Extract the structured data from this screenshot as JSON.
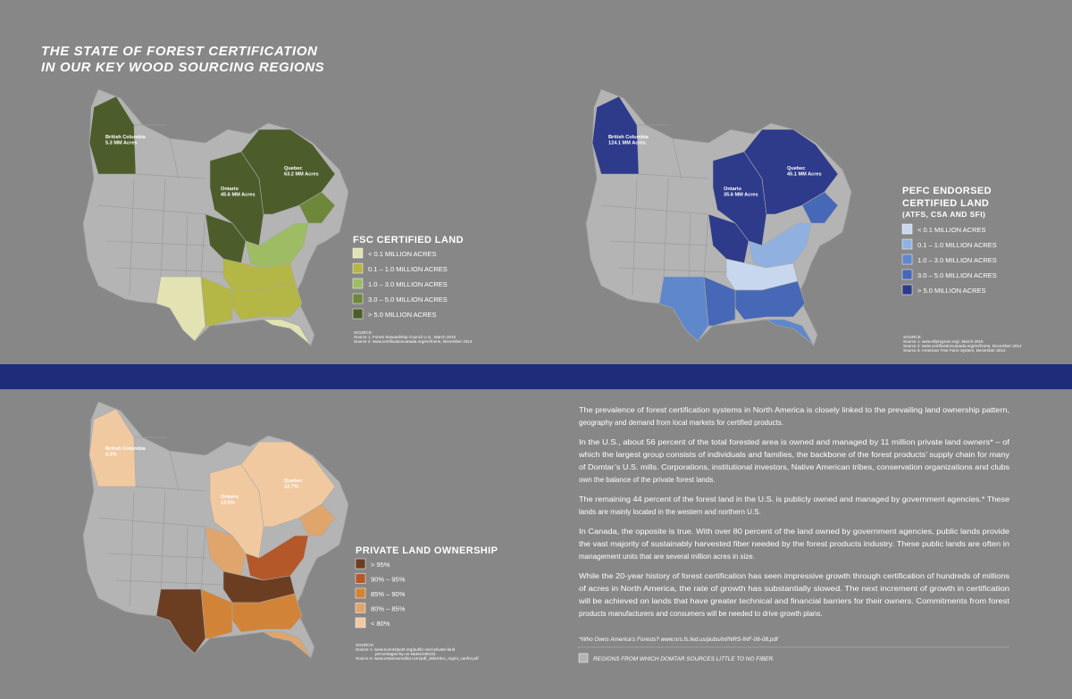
{
  "header": {
    "title_lines": [
      "THE STATE OF FOREST CERTIFICATION",
      "IN OUR KEY WOOD SOURCING REGIONS"
    ]
  },
  "maps": [
    {
      "labels": [
        {
          "name": "British Columbia",
          "value": "5.3 MM Acres"
        },
        {
          "name": "Ontario",
          "value": "45.6 MM Acres"
        },
        {
          "name": "Quebec",
          "value": "63.2 MM Acres"
        }
      ],
      "legend": {
        "title_lines": [
          "FSC CERTIFIED LAND"
        ],
        "items": [
          {
            "label": "< 0.1 MILLION ACRES",
            "color": "#e2e2b3"
          },
          {
            "label": "0.1 – 1.0 MILLION ACRES",
            "color": "#b4b645"
          },
          {
            "label": "1.0 – 3.0 MILLION ACRES",
            "color": "#9dbc64"
          },
          {
            "label": "3.0 – 5.0 MILLION ACRES",
            "color": "#6e873b"
          },
          {
            "label": "> 5.0 MILLION ACRES",
            "color": "#4c5d2b"
          }
        ]
      },
      "sources": [
        "SOURCE:",
        "Source 1: Forest Stewardship Council U.S., March 2015",
        "Source 2: www.certificationcanada.org/en/home, December 2014"
      ]
    },
    {
      "labels": [
        {
          "name": "British Columbia",
          "value": "124.1 MM Acres"
        },
        {
          "name": "Ontario",
          "value": "35.6 MM Acres"
        },
        {
          "name": "Quebec",
          "value": "45.1 MM Acres"
        }
      ],
      "legend": {
        "title_lines": [
          "PEFC ENDORSED",
          "CERTIFIED LAND",
          "(ATFS, CSA AND SFI)"
        ],
        "items": [
          {
            "label": "< 0.1 MILLION ACRES",
            "color": "#c7d8ee"
          },
          {
            "label": "0.1 – 1.0 MILLION ACRES",
            "color": "#90b0df"
          },
          {
            "label": "1.0 – 3.0 MILLION ACRES",
            "color": "#5f87cb"
          },
          {
            "label": "3.0 – 5.0 MILLION ACRES",
            "color": "#4768b6"
          },
          {
            "label": "> 5.0 MILLION ACRES",
            "color": "#2e3a8a"
          }
        ]
      },
      "sources": [
        "SOURCE:",
        "Source 1: www.sfiprogram.org/, March 2015",
        "Source 2: www.certificationcanada.org/en/home, December 2014",
        "Source 3: American Tree Farm System, December 2014"
      ]
    },
    {
      "labels": [
        {
          "name": "British Columbia",
          "value": "4.3%"
        },
        {
          "name": "Ontario",
          "value": "13.5%"
        },
        {
          "name": "Quebec",
          "value": "12.7%"
        }
      ],
      "legend": {
        "title_lines": [
          "PRIVATE LAND OWNERSHIP"
        ],
        "items": [
          {
            "label": "> 95%",
            "color": "#6b3e22"
          },
          {
            "label": "90% – 95%",
            "color": "#b4582a"
          },
          {
            "label": "85% – 90%",
            "color": "#d18437"
          },
          {
            "label": "80% – 85%",
            "color": "#dfa56b"
          },
          {
            "label": "< 80%",
            "color": "#f1c9a0"
          }
        ]
      },
      "sources": [
        "SOURCE:",
        "Source 1: www.summitpost.org/public-and-private-land",
        "percentages-by-us-states/186111",
        "Source 2: www.ontariowoodlot.com/pdf_older/doc_mgmt_canfor.pdf"
      ]
    }
  ],
  "body": {
    "paragraphs": [
      [
        "The prevalence of forest certification systems in North America is closely linked to the prevailing land ownership pattern,",
        "geography and demand from local markets for certified products."
      ],
      [
        "In the U.S., about 56 percent of the total forested area is owned and managed by 11 million private land owners* – of",
        "which the largest group consists of individuals and families, the backbone of the forest products’ supply chain for many",
        "of Domtar’s U.S. mills. Corporations, institutional investors, Native American tribes, conservation organizations and clubs",
        "own the balance of the private forest lands."
      ],
      [
        "The remaining 44 percent of the forest land in the U.S. is publicly owned and managed by government agencies.* These",
        "lands are mainly located in the western and northern U.S."
      ],
      [
        "In Canada, the opposite is true. With over 80 percent of the land owned by government agencies, public lands provide",
        "the vast majority of sustainably harvested fiber needed by the forest products industry. These public lands are often in",
        "management units that are several million acres in size."
      ],
      [
        "While the 20-year history of forest certification has seen impressive growth through certification of hundreds of millions",
        "of acres in North America, the rate of growth has substantially slowed. The next increment of growth in certification",
        "will be achieved on lands that have greater technical and financial barriers for their owners. Commitments from forest",
        "products manufacturers and consumers will be needed to drive growth plans."
      ]
    ],
    "footnote": "*Who Owns America’s Forests? www.nrs.fs.fed.us/pubs/inf/NRS-INF-06-08.pdf",
    "legend_note": "REGIONS FROM WHICH DOMTAR SOURCES LITTLE TO NO FIBER."
  }
}
